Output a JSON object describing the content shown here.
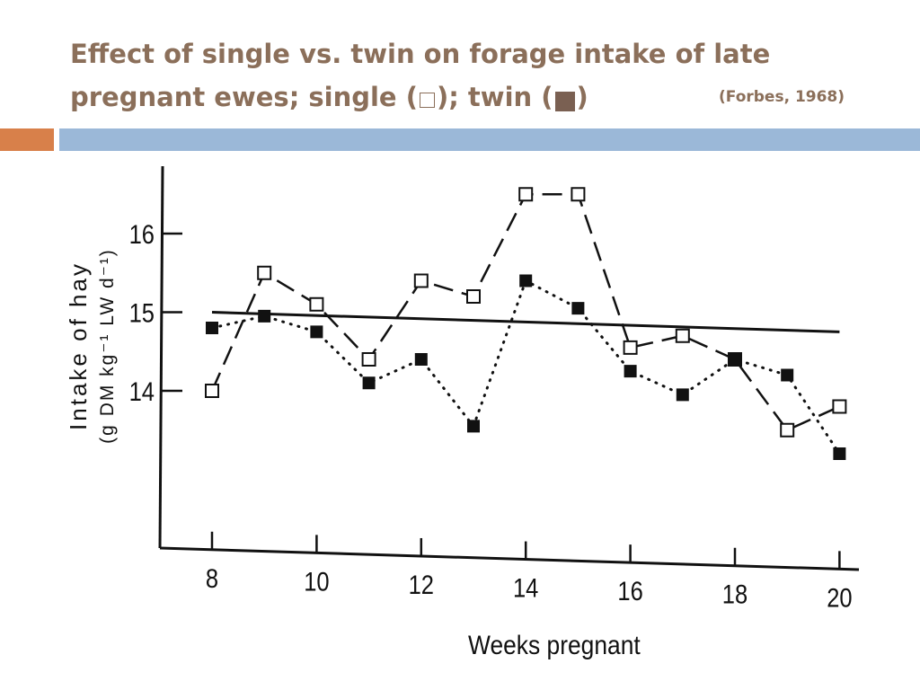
{
  "slide": {
    "title_line1": "Effect of single vs. twin on forage intake of late",
    "title_line2_a": "pregnant ewes; single (",
    "title_line2_b": "); twin (",
    "title_line2_c": ")",
    "citation": "(Forbes, 1968)",
    "colors": {
      "title": "#8b6f5a",
      "accent_orange": "#d8804a",
      "accent_blue": "#9bb8d8"
    }
  },
  "chart_data": {
    "type": "line",
    "xlabel": "Weeks pregnant",
    "ylabel_line1": "Intake of hay",
    "ylabel_line2": "(g DM kg⁻¹ LW d⁻¹)",
    "x_ticks": [
      8,
      10,
      12,
      14,
      16,
      18,
      20
    ],
    "y_ticks": [
      14,
      15,
      16
    ],
    "xlim": [
      7,
      20
    ],
    "ylim": [
      12,
      16.9
    ],
    "series": [
      {
        "marker": "open-square",
        "line_style": "dashed",
        "x": [
          8,
          9,
          10,
          11,
          12,
          13,
          14,
          15,
          16,
          17,
          18,
          19,
          20
        ],
        "values": [
          14.0,
          15.5,
          15.1,
          14.4,
          15.4,
          15.2,
          16.5,
          16.5,
          14.55,
          14.7,
          14.4,
          13.5,
          13.8
        ]
      },
      {
        "marker": "filled-square",
        "line_style": "dotted",
        "x": [
          8,
          9,
          10,
          11,
          12,
          13,
          14,
          15,
          16,
          17,
          18,
          19,
          20
        ],
        "values": [
          14.8,
          14.95,
          14.75,
          14.1,
          14.4,
          13.55,
          15.4,
          15.05,
          14.25,
          13.95,
          14.4,
          14.2,
          13.2
        ]
      }
    ],
    "trend_line": {
      "x": [
        8,
        20
      ],
      "values": [
        15.0,
        14.75
      ]
    }
  }
}
